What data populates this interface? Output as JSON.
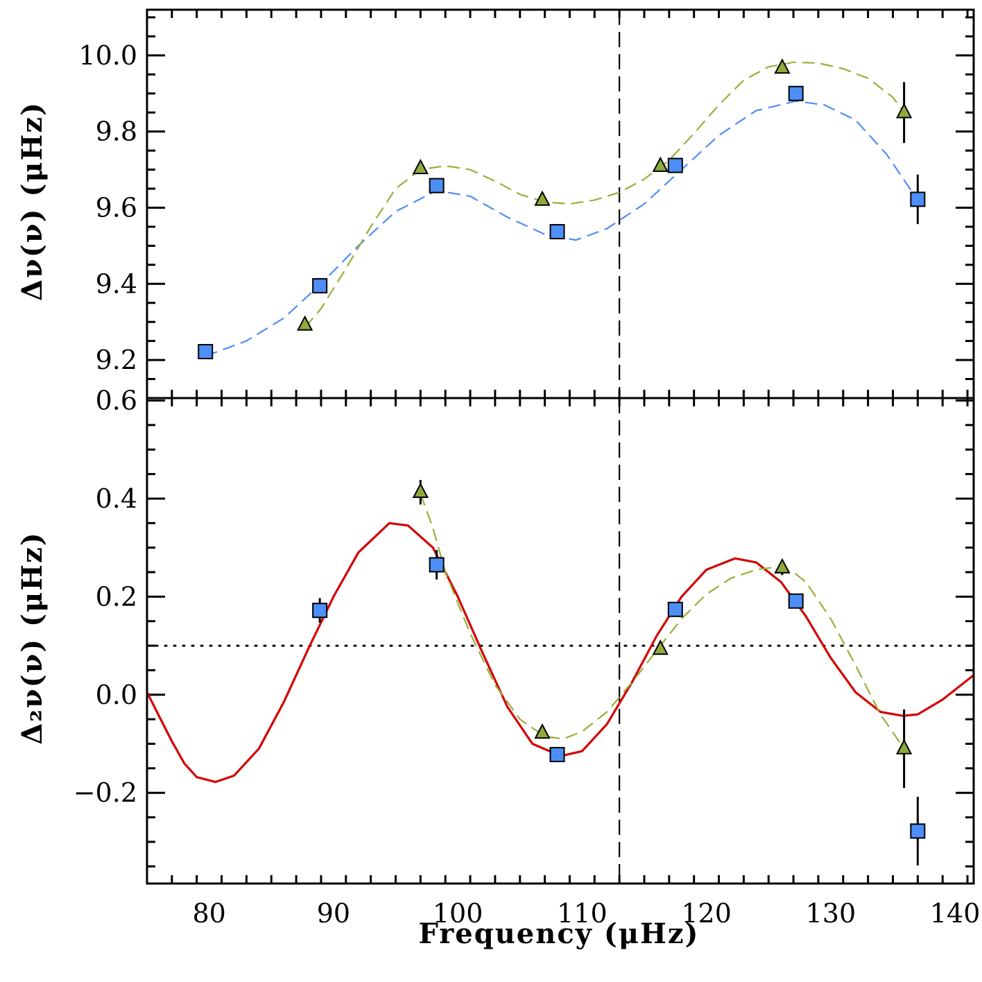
{
  "chart_data": [
    {
      "type": "scatter",
      "ylabel": "Δν(ν) (μHz)",
      "xlim": [
        75,
        141.5
      ],
      "ylim": [
        9.1,
        10.12
      ],
      "yticks": [
        "9.2",
        "9.4",
        "9.6",
        "9.8",
        "10.0"
      ],
      "grid": false,
      "legend": "none",
      "vline_x": 113,
      "series": [
        {
          "marker": "square",
          "color": "#4d8ef7",
          "points": [
            {
              "x": 79.7,
              "y": 9.222,
              "err": 0.008
            },
            {
              "x": 88.9,
              "y": 9.395,
              "err": 0.008
            },
            {
              "x": 98.3,
              "y": 9.658,
              "err": 0.008
            },
            {
              "x": 108.0,
              "y": 9.537,
              "err": 0.008
            },
            {
              "x": 117.5,
              "y": 9.711,
              "err": 0.008
            },
            {
              "x": 127.2,
              "y": 9.9,
              "err": 0.008
            },
            {
              "x": 137.0,
              "y": 9.622,
              "err": 0.065
            }
          ]
        },
        {
          "marker": "triangle",
          "color": "#8faa3c",
          "points": [
            {
              "x": 87.7,
              "y": 9.292,
              "err": 0.008
            },
            {
              "x": 97.0,
              "y": 9.703,
              "err": 0.008
            },
            {
              "x": 106.8,
              "y": 9.62,
              "err": 0.008
            },
            {
              "x": 116.3,
              "y": 9.709,
              "err": 0.008
            },
            {
              "x": 126.1,
              "y": 9.967,
              "err": 0.008
            },
            {
              "x": 135.9,
              "y": 9.85,
              "err": 0.08
            }
          ]
        }
      ],
      "fit_curves": [
        {
          "color": "#4d8ef7",
          "dash": "dashed",
          "points": [
            [
              79.7,
              9.21
            ],
            [
              83,
              9.25
            ],
            [
              86,
              9.31
            ],
            [
              89,
              9.4
            ],
            [
              92,
              9.5
            ],
            [
              95,
              9.59
            ],
            [
              98.3,
              9.645
            ],
            [
              101,
              9.63
            ],
            [
              104,
              9.575
            ],
            [
              107,
              9.53
            ],
            [
              109.5,
              9.515
            ],
            [
              112,
              9.545
            ],
            [
              115,
              9.61
            ],
            [
              118,
              9.7
            ],
            [
              121,
              9.79
            ],
            [
              124,
              9.855
            ],
            [
              127.2,
              9.88
            ],
            [
              129.5,
              9.87
            ],
            [
              132,
              9.83
            ],
            [
              134.5,
              9.74
            ],
            [
              137,
              9.62
            ]
          ]
        },
        {
          "color": "#9aad38",
          "dash": "dashed",
          "points": [
            [
              87.7,
              9.285
            ],
            [
              89,
              9.335
            ],
            [
              91,
              9.44
            ],
            [
              93,
              9.55
            ],
            [
              95,
              9.65
            ],
            [
              97,
              9.7
            ],
            [
              99,
              9.71
            ],
            [
              101,
              9.7
            ],
            [
              103,
              9.67
            ],
            [
              105,
              9.635
            ],
            [
              107,
              9.615
            ],
            [
              109,
              9.61
            ],
            [
              111,
              9.62
            ],
            [
              113,
              9.64
            ],
            [
              115,
              9.675
            ],
            [
              117,
              9.725
            ],
            [
              119,
              9.795
            ],
            [
              121,
              9.87
            ],
            [
              123,
              9.935
            ],
            [
              125,
              9.97
            ],
            [
              127,
              9.982
            ],
            [
              129,
              9.98
            ],
            [
              131,
              9.965
            ],
            [
              133,
              9.94
            ],
            [
              135,
              9.89
            ],
            [
              135.9,
              9.85
            ]
          ]
        }
      ]
    },
    {
      "type": "scatter",
      "xlabel": "Frequency (μHz)",
      "ylabel": "Δ₂ν(ν) (μHz)",
      "xlim": [
        75,
        141.5
      ],
      "ylim": [
        -0.385,
        0.605
      ],
      "xticks": [
        "80",
        "90",
        "100",
        "110",
        "120",
        "130",
        "140"
      ],
      "yticks": [
        "−0.2",
        "0.0",
        "0.2",
        "0.4",
        "0.6"
      ],
      "grid": false,
      "legend": "none",
      "vline_x": 113,
      "hline_y": 0.1,
      "series": [
        {
          "marker": "square",
          "color": "#4d8ef7",
          "points": [
            {
              "x": 88.9,
              "y": 0.172,
              "err": 0.025
            },
            {
              "x": 98.3,
              "y": 0.265,
              "err": 0.03
            },
            {
              "x": 108.0,
              "y": -0.122,
              "err": 0.01
            },
            {
              "x": 117.5,
              "y": 0.174,
              "err": 0.01
            },
            {
              "x": 127.2,
              "y": 0.191,
              "err": 0.01
            },
            {
              "x": 137.0,
              "y": -0.278,
              "err": 0.07
            }
          ]
        },
        {
          "marker": "triangle",
          "color": "#8faa3c",
          "points": [
            {
              "x": 97.0,
              "y": 0.413,
              "err": 0.025
            },
            {
              "x": 106.8,
              "y": -0.078,
              "err": 0.01
            },
            {
              "x": 116.3,
              "y": 0.093,
              "err": 0.01
            },
            {
              "x": 126.1,
              "y": 0.259,
              "err": 0.015
            },
            {
              "x": 135.9,
              "y": -0.11,
              "err": 0.08
            }
          ]
        }
      ],
      "fit_curves": [
        {
          "color": "#d40000",
          "dash": "solid",
          "points": [
            [
              75,
              0.005
            ],
            [
              76,
              -0.045
            ],
            [
              77,
              -0.095
            ],
            [
              78,
              -0.14
            ],
            [
              79,
              -0.168
            ],
            [
              80.5,
              -0.178
            ],
            [
              82,
              -0.165
            ],
            [
              84,
              -0.11
            ],
            [
              86,
              -0.015
            ],
            [
              88,
              0.095
            ],
            [
              90,
              0.2
            ],
            [
              92,
              0.29
            ],
            [
              94.5,
              0.35
            ],
            [
              96,
              0.345
            ],
            [
              98,
              0.3
            ],
            [
              100,
              0.2
            ],
            [
              102,
              0.085
            ],
            [
              104,
              -0.025
            ],
            [
              106,
              -0.1
            ],
            [
              108.3,
              -0.125
            ],
            [
              110,
              -0.115
            ],
            [
              112,
              -0.06
            ],
            [
              114,
              0.025
            ],
            [
              116,
              0.12
            ],
            [
              118,
              0.2
            ],
            [
              120,
              0.255
            ],
            [
              122.3,
              0.278
            ],
            [
              124,
              0.27
            ],
            [
              126,
              0.23
            ],
            [
              128,
              0.16
            ],
            [
              130,
              0.075
            ],
            [
              132,
              0.005
            ],
            [
              134,
              -0.035
            ],
            [
              135.8,
              -0.043
            ],
            [
              137,
              -0.04
            ],
            [
              139,
              -0.01
            ],
            [
              141.5,
              0.04
            ]
          ]
        },
        {
          "color": "#9aad38",
          "dash": "dashed",
          "points": [
            [
              97,
              0.41
            ],
            [
              98,
              0.34
            ],
            [
              99,
              0.25
            ],
            [
              101,
              0.125
            ],
            [
              103,
              0.02
            ],
            [
              105,
              -0.05
            ],
            [
              107,
              -0.085
            ],
            [
              108.5,
              -0.09
            ],
            [
              110,
              -0.075
            ],
            [
              112,
              -0.035
            ],
            [
              114,
              0.025
            ],
            [
              116,
              0.09
            ],
            [
              118,
              0.155
            ],
            [
              120,
              0.205
            ],
            [
              122,
              0.238
            ],
            [
              124,
              0.255
            ],
            [
              125.5,
              0.26
            ],
            [
              127,
              0.25
            ],
            [
              128,
              0.23
            ],
            [
              130,
              0.155
            ],
            [
              132,
              0.06
            ],
            [
              134,
              -0.04
            ],
            [
              135.9,
              -0.11
            ]
          ]
        }
      ]
    }
  ]
}
